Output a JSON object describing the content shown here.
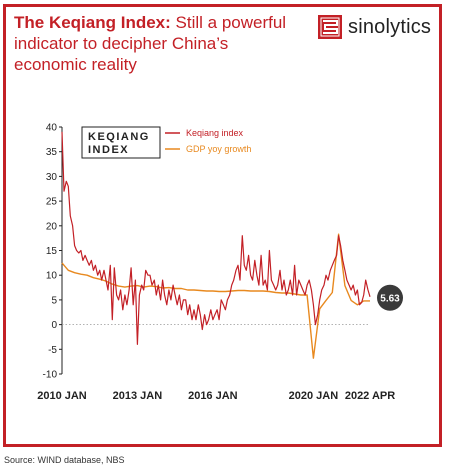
{
  "header": {
    "title_bold": "The Keqiang Index:",
    "title_rest": " Still a powerful indicator to decipher China’s economic reality"
  },
  "logo": {
    "name": "sinolytics",
    "icon": "sinolytics-seal-icon",
    "color": "#c32026"
  },
  "source": "Source: WIND database, NBS",
  "colors": {
    "frame": "#c32026",
    "keqiang": "#c32026",
    "gdp": "#e8891f",
    "badge": "#3a3a3a"
  },
  "chart_data": {
    "type": "line",
    "legend_title": [
      "KEQIANG",
      "INDEX"
    ],
    "legend_placement": "top-left",
    "ylim": [
      -10,
      40
    ],
    "yticks": [
      -10,
      -5,
      0,
      5,
      10,
      15,
      20,
      25,
      30,
      35,
      40
    ],
    "x_range": [
      2010.0,
      2022.25
    ],
    "x_ticks": [
      {
        "label": "2010 JAN",
        "x": 2010.0
      },
      {
        "label": "2013 JAN",
        "x": 2013.0
      },
      {
        "label": "2016 JAN",
        "x": 2016.0
      },
      {
        "label": "2020 JAN",
        "x": 2020.0
      },
      {
        "label": "2022 APR",
        "x": 2022.25
      }
    ],
    "zero_line": "dotted",
    "annotation": {
      "label": "5.63",
      "x": 2022.25,
      "y": 5.63
    },
    "series": [
      {
        "name": "Keqiang index",
        "points": [
          [
            2010.0,
            39
          ],
          [
            2010.08,
            27
          ],
          [
            2010.17,
            29
          ],
          [
            2010.25,
            28
          ],
          [
            2010.33,
            22
          ],
          [
            2010.42,
            20
          ],
          [
            2010.5,
            16
          ],
          [
            2010.58,
            15
          ],
          [
            2010.67,
            14.5
          ],
          [
            2010.75,
            15
          ],
          [
            2010.83,
            13
          ],
          [
            2010.92,
            14
          ],
          [
            2011.0,
            13
          ],
          [
            2011.08,
            12
          ],
          [
            2011.17,
            13
          ],
          [
            2011.25,
            11
          ],
          [
            2011.33,
            12
          ],
          [
            2011.42,
            10
          ],
          [
            2011.5,
            11
          ],
          [
            2011.58,
            9
          ],
          [
            2011.67,
            11
          ],
          [
            2011.75,
            9
          ],
          [
            2011.83,
            7
          ],
          [
            2011.92,
            12
          ],
          [
            2012.0,
            1
          ],
          [
            2012.08,
            11.5
          ],
          [
            2012.17,
            6
          ],
          [
            2012.25,
            5
          ],
          [
            2012.33,
            7
          ],
          [
            2012.42,
            3
          ],
          [
            2012.5,
            6
          ],
          [
            2012.58,
            4
          ],
          [
            2012.67,
            7
          ],
          [
            2012.75,
            11.5
          ],
          [
            2012.83,
            4
          ],
          [
            2012.92,
            9
          ],
          [
            2013.0,
            -4
          ],
          [
            2013.08,
            6
          ],
          [
            2013.17,
            8
          ],
          [
            2013.25,
            7
          ],
          [
            2013.33,
            11
          ],
          [
            2013.42,
            10
          ],
          [
            2013.5,
            10
          ],
          [
            2013.58,
            8
          ],
          [
            2013.67,
            9
          ],
          [
            2013.75,
            6
          ],
          [
            2013.83,
            8
          ],
          [
            2013.92,
            5
          ],
          [
            2014.0,
            9
          ],
          [
            2014.08,
            6
          ],
          [
            2014.17,
            4
          ],
          [
            2014.25,
            7
          ],
          [
            2014.33,
            5
          ],
          [
            2014.42,
            8
          ],
          [
            2014.5,
            6
          ],
          [
            2014.58,
            4
          ],
          [
            2014.67,
            6
          ],
          [
            2014.75,
            3
          ],
          [
            2014.83,
            5
          ],
          [
            2014.92,
            5
          ],
          [
            2015.0,
            2
          ],
          [
            2015.08,
            4
          ],
          [
            2015.17,
            1
          ],
          [
            2015.25,
            3
          ],
          [
            2015.33,
            1
          ],
          [
            2015.42,
            4
          ],
          [
            2015.5,
            2
          ],
          [
            2015.58,
            -1
          ],
          [
            2015.67,
            2
          ],
          [
            2015.75,
            0
          ],
          [
            2015.83,
            1
          ],
          [
            2015.92,
            3
          ],
          [
            2016.0,
            1
          ],
          [
            2016.08,
            2
          ],
          [
            2016.17,
            3
          ],
          [
            2016.25,
            1
          ],
          [
            2016.33,
            5
          ],
          [
            2016.42,
            4
          ],
          [
            2016.5,
            3
          ],
          [
            2016.58,
            5
          ],
          [
            2016.67,
            6
          ],
          [
            2016.75,
            8
          ],
          [
            2016.83,
            9
          ],
          [
            2016.92,
            11
          ],
          [
            2017.0,
            12
          ],
          [
            2017.08,
            9
          ],
          [
            2017.17,
            18
          ],
          [
            2017.25,
            12
          ],
          [
            2017.33,
            11
          ],
          [
            2017.42,
            14
          ],
          [
            2017.5,
            10
          ],
          [
            2017.58,
            9
          ],
          [
            2017.67,
            13
          ],
          [
            2017.75,
            10
          ],
          [
            2017.83,
            8
          ],
          [
            2017.92,
            14
          ],
          [
            2018.0,
            8
          ],
          [
            2018.08,
            9
          ],
          [
            2018.17,
            7
          ],
          [
            2018.25,
            15
          ],
          [
            2018.33,
            9
          ],
          [
            2018.42,
            8
          ],
          [
            2018.5,
            7
          ],
          [
            2018.58,
            8
          ],
          [
            2018.67,
            11
          ],
          [
            2018.75,
            7
          ],
          [
            2018.83,
            9
          ],
          [
            2018.92,
            6
          ],
          [
            2019.0,
            7
          ],
          [
            2019.08,
            9
          ],
          [
            2019.17,
            6
          ],
          [
            2019.25,
            12
          ],
          [
            2019.33,
            6
          ],
          [
            2019.42,
            9
          ],
          [
            2019.5,
            8
          ],
          [
            2019.58,
            7
          ],
          [
            2019.67,
            6
          ],
          [
            2019.75,
            8
          ],
          [
            2019.83,
            9
          ],
          [
            2019.92,
            7
          ],
          [
            2020.0,
            4
          ],
          [
            2020.08,
            0
          ],
          [
            2020.17,
            2
          ],
          [
            2020.25,
            5
          ],
          [
            2020.33,
            7
          ],
          [
            2020.42,
            8
          ],
          [
            2020.5,
            10
          ],
          [
            2020.58,
            9
          ],
          [
            2020.67,
            11
          ],
          [
            2020.75,
            12
          ],
          [
            2020.83,
            13
          ],
          [
            2020.92,
            14
          ],
          [
            2021.0,
            18
          ],
          [
            2021.08,
            16
          ],
          [
            2021.17,
            13
          ],
          [
            2021.25,
            11
          ],
          [
            2021.33,
            9
          ],
          [
            2021.42,
            8
          ],
          [
            2021.5,
            7
          ],
          [
            2021.58,
            8
          ],
          [
            2021.67,
            6
          ],
          [
            2021.75,
            7
          ],
          [
            2021.83,
            4
          ],
          [
            2021.92,
            4.5
          ],
          [
            2022.0,
            6
          ],
          [
            2022.08,
            9
          ],
          [
            2022.17,
            7
          ],
          [
            2022.25,
            5.63
          ]
        ]
      },
      {
        "name": "GDP yoy growth",
        "points": [
          [
            2010.0,
            12.5
          ],
          [
            2010.25,
            11
          ],
          [
            2010.5,
            10.5
          ],
          [
            2010.75,
            10.2
          ],
          [
            2011.0,
            10
          ],
          [
            2011.25,
            9.5
          ],
          [
            2011.5,
            9.2
          ],
          [
            2011.75,
            8.8
          ],
          [
            2012.0,
            8.2
          ],
          [
            2012.25,
            7.8
          ],
          [
            2012.5,
            7.6
          ],
          [
            2012.75,
            7.8
          ],
          [
            2013.0,
            7.9
          ],
          [
            2013.25,
            7.6
          ],
          [
            2013.5,
            7.8
          ],
          [
            2013.75,
            7.7
          ],
          [
            2014.0,
            7.4
          ],
          [
            2014.25,
            7.5
          ],
          [
            2014.5,
            7.3
          ],
          [
            2014.75,
            7.3
          ],
          [
            2015.0,
            7.0
          ],
          [
            2015.25,
            7.0
          ],
          [
            2015.5,
            6.9
          ],
          [
            2015.75,
            6.8
          ],
          [
            2016.0,
            6.8
          ],
          [
            2016.25,
            6.7
          ],
          [
            2016.5,
            6.7
          ],
          [
            2016.75,
            6.8
          ],
          [
            2017.0,
            6.9
          ],
          [
            2017.25,
            6.9
          ],
          [
            2017.5,
            6.8
          ],
          [
            2017.75,
            6.8
          ],
          [
            2018.0,
            6.8
          ],
          [
            2018.25,
            6.7
          ],
          [
            2018.5,
            6.5
          ],
          [
            2018.75,
            6.4
          ],
          [
            2019.0,
            6.4
          ],
          [
            2019.25,
            6.2
          ],
          [
            2019.5,
            6.0
          ],
          [
            2019.75,
            6.0
          ],
          [
            2020.0,
            -6.8
          ],
          [
            2020.25,
            3.2
          ],
          [
            2020.5,
            4.9
          ],
          [
            2020.75,
            6.5
          ],
          [
            2021.0,
            18.3
          ],
          [
            2021.25,
            7.9
          ],
          [
            2021.5,
            4.9
          ],
          [
            2021.75,
            4.0
          ],
          [
            2022.0,
            4.8
          ],
          [
            2022.25,
            4.8
          ]
        ]
      }
    ]
  }
}
